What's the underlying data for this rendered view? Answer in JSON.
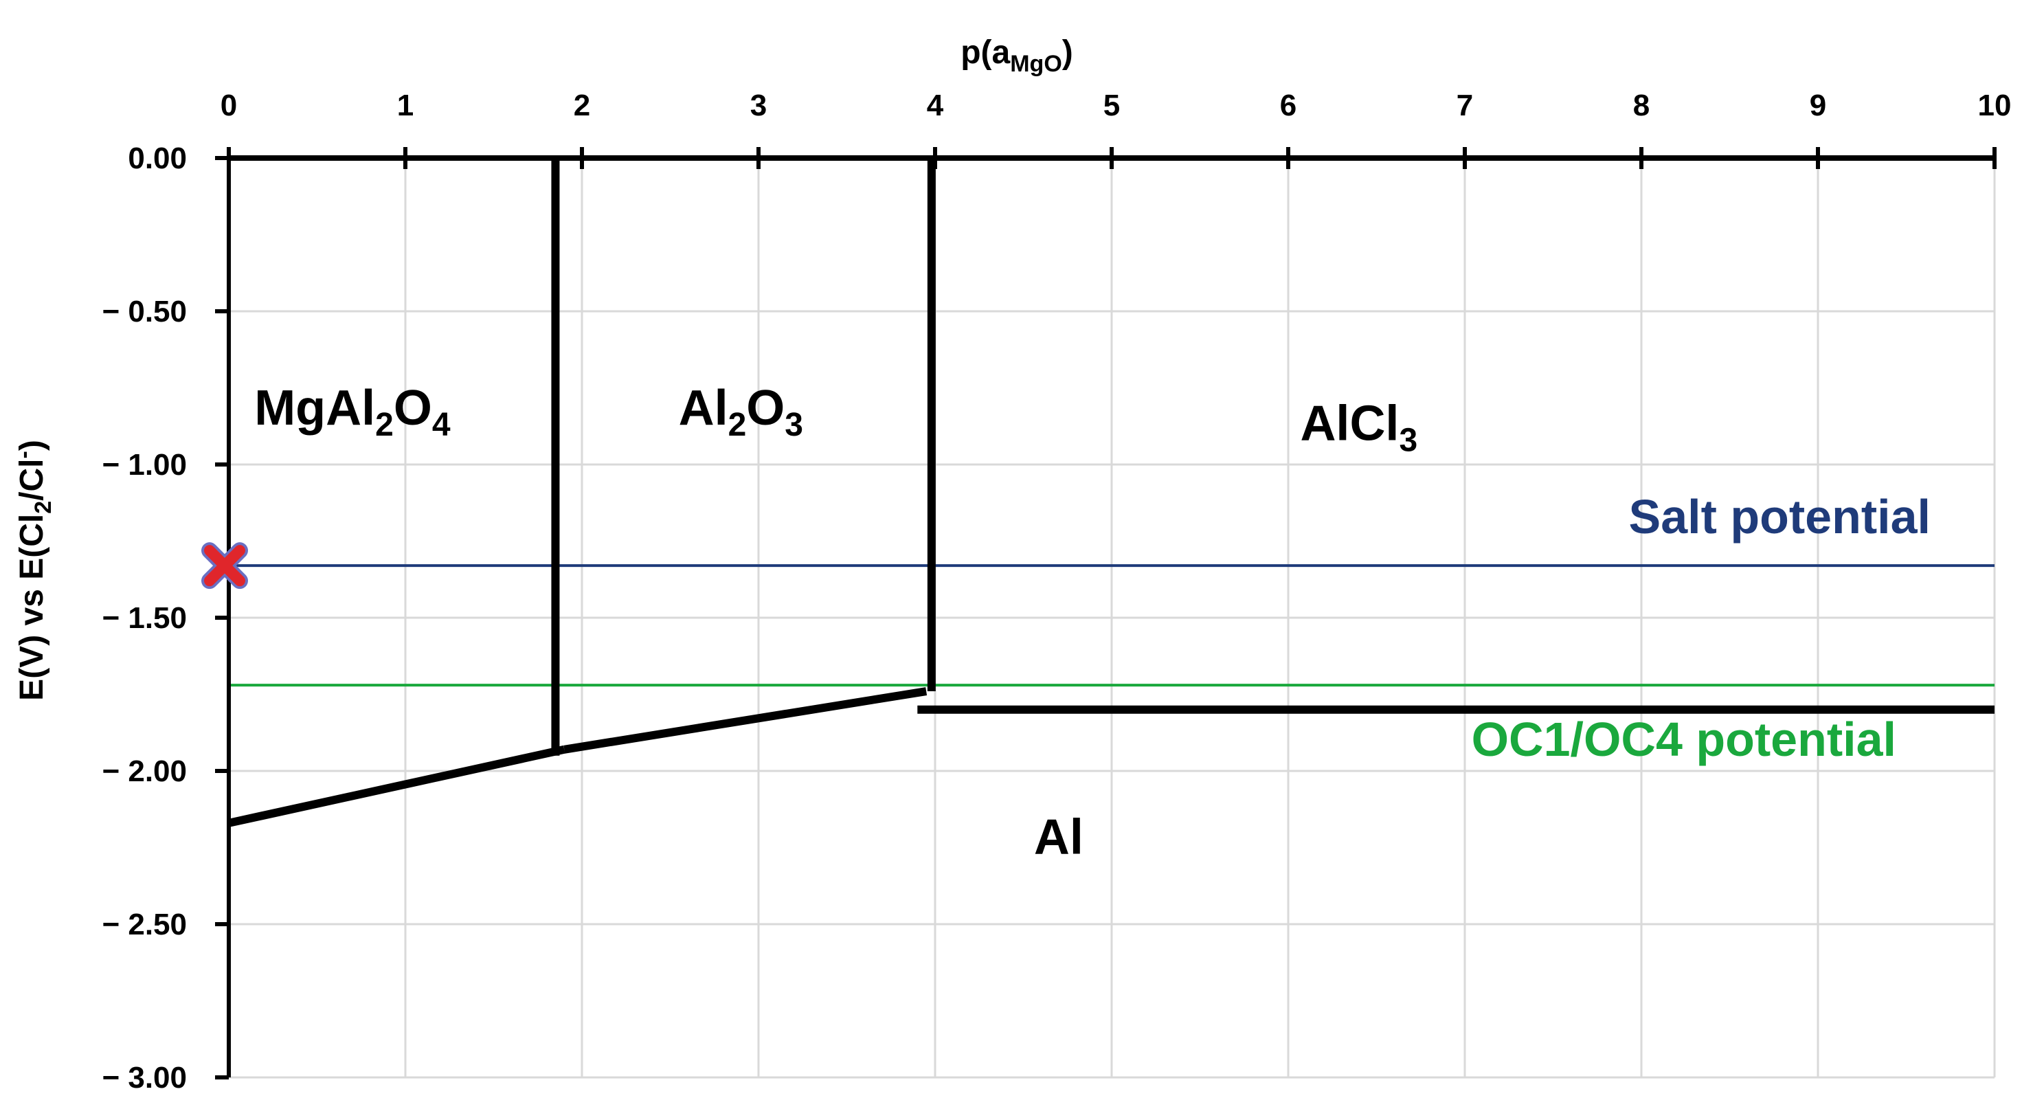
{
  "chart_data": {
    "type": "line",
    "title": "",
    "x_axis": {
      "label_base": "p(a",
      "label_sub": "MgO",
      "label_close": ")",
      "position": "top",
      "min": 0,
      "max": 10,
      "ticks": [
        0,
        1,
        2,
        3,
        4,
        5,
        6,
        7,
        8,
        9,
        10
      ],
      "tick_labels": [
        "0",
        "1",
        "2",
        "3",
        "4",
        "5",
        "6",
        "7",
        "8",
        "9",
        "10"
      ]
    },
    "y_axis": {
      "label_pre": "E(V) vs E(Cl",
      "label_sub": "2",
      "label_mid": "/Cl",
      "label_sup": "-",
      "label_close": ")",
      "min": -3.0,
      "max": 0.0,
      "ticks": [
        0,
        -0.5,
        -1.0,
        -1.5,
        -2.0,
        -2.5,
        -3.0
      ],
      "tick_labels": [
        "0.00",
        "− 0.50",
        "− 1.00",
        "− 1.50",
        "− 2.00",
        "− 2.50",
        "− 3.00"
      ]
    },
    "grid": true,
    "boundaries": [
      {
        "points": [
          [
            0,
            -2.17
          ],
          [
            1.9,
            -1.93
          ]
        ]
      },
      {
        "points": [
          [
            1.9,
            -1.93
          ],
          [
            3.95,
            -1.74
          ]
        ]
      },
      {
        "points": [
          [
            3.9,
            -1.8
          ],
          [
            10,
            -1.8
          ]
        ]
      },
      {
        "points": [
          [
            1.85,
            0.0
          ],
          [
            1.85,
            -1.95
          ]
        ]
      },
      {
        "points": [
          [
            3.98,
            0.0
          ],
          [
            3.98,
            -1.74
          ]
        ]
      }
    ],
    "reference_lines": [
      {
        "name": "Salt potential",
        "y": -1.33,
        "color": "#1f3b7a"
      },
      {
        "name": "OC1/OC4 potential",
        "y": -1.72,
        "color": "#1aa83d"
      }
    ],
    "marker": {
      "x": 0,
      "y": -1.33,
      "symbol": "x",
      "color": "#e0262b"
    },
    "regions": [
      {
        "parts": [
          "MgAl",
          "2",
          "O",
          "4"
        ],
        "x": 0.7,
        "y": -0.87
      },
      {
        "parts": [
          "Al",
          "2",
          "O",
          "3"
        ],
        "x": 2.9,
        "y": -0.87
      },
      {
        "parts": [
          "AlCl",
          "3"
        ],
        "x": 6.4,
        "y": -0.92
      },
      {
        "parts": [
          "Al"
        ],
        "x": 4.7,
        "y": -2.27
      }
    ]
  }
}
